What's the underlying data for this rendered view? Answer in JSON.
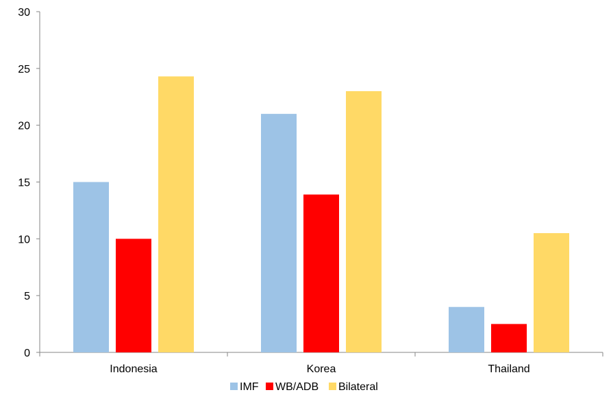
{
  "chart_data": {
    "type": "bar",
    "categories": [
      "Indonesia",
      "Korea",
      "Thailand"
    ],
    "series": [
      {
        "name": "IMF",
        "values": [
          15,
          21,
          4
        ],
        "color": "#9DC3E6"
      },
      {
        "name": "WB/ADB",
        "values": [
          10,
          13.9,
          2.5
        ],
        "color": "#FF0000"
      },
      {
        "name": "Bilateral",
        "values": [
          24.3,
          23,
          10.5
        ],
        "color": "#FFD966"
      }
    ],
    "title": "",
    "xlabel": "",
    "ylabel": "",
    "ylim": [
      0,
      30
    ],
    "yticks": [
      "0",
      "5",
      "10",
      "15",
      "20",
      "25",
      "30"
    ],
    "grid": false,
    "legend_position": "bottom"
  }
}
